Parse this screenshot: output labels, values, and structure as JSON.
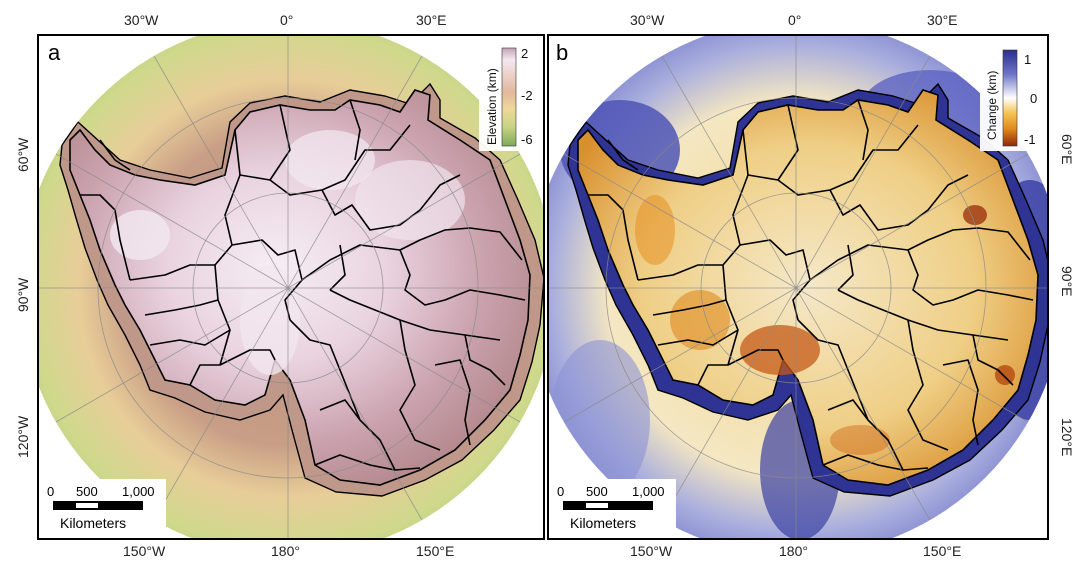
{
  "panels": [
    {
      "id": "a",
      "label": "a",
      "colorbar": {
        "title": "Elevation (km)",
        "ticks": [
          "2",
          "-2",
          "-6"
        ],
        "colors": [
          "#c4a2b6",
          "#f4e8f0",
          "#e2b89c",
          "#efd79a",
          "#c9d585",
          "#7fa95a"
        ]
      },
      "scalebar": {
        "ticks": [
          "0",
          "500",
          "1,000"
        ],
        "unit": "Kilometers"
      }
    },
    {
      "id": "b",
      "label": "b",
      "colorbar": {
        "title": "Change (km)",
        "ticks": [
          "1",
          "0",
          "-1"
        ],
        "colors": [
          "#2b2e8c",
          "#6d74c8",
          "#ffffff",
          "#f6c65a",
          "#e08a1e",
          "#8e2a0a"
        ]
      },
      "scalebar": {
        "ticks": [
          "0",
          "500",
          "1,000"
        ],
        "unit": "Kilometers"
      }
    }
  ],
  "graticule": {
    "top": [
      "30°W",
      "0°",
      "30°E"
    ],
    "bottom": [
      "150°W",
      "180°",
      "150°E"
    ],
    "left": [
      "60°W",
      "90°W",
      "120°W"
    ],
    "right": [
      "60°E",
      "90°E",
      "120°E"
    ]
  }
}
